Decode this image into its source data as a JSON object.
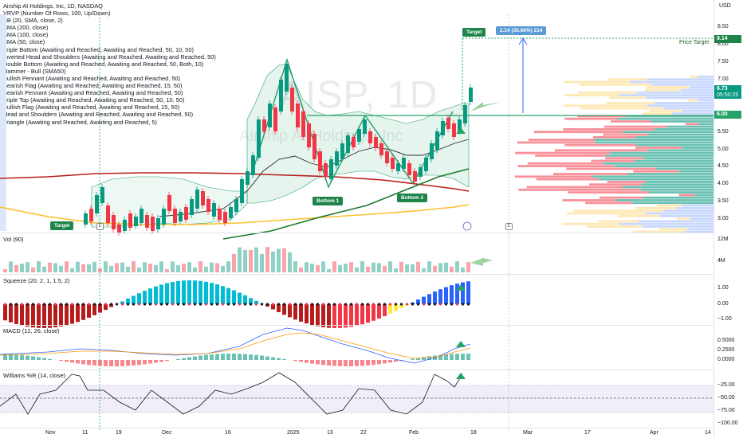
{
  "header": {
    "symbol_line": "Airship AI Holdings, Inc, 1D, NASDAQ",
    "indicators": [
      "VRVP (Number Of Rows, 100, Up/Down)",
      "BB (20, SMA, close, 2)",
      "SMA (200, close)",
      "SMA (100, close)",
      "SMA (50, close)",
      "Triple Bottom (Awaiting and Reached, Awaiting and Reached, 50, 10, 50)",
      "Inverted Head and Shoulders (Awaiting and Reached, Awaiting and Reached, 50)",
      "Double Bottom (Awaiting and Reached, Awaiting and Reached, 50, Both, 10)",
      "Hammer - Bull (SMA50)",
      "Bullish Pennant (Awaiting and Reached, Awaiting and Reached, 50)",
      "Bearish Flag (Awaiting and Reached, Awaiting and Reached, 15, 50)",
      "Bearish Pennant (Awaiting and Reached, Awaiting and Reached, 50)",
      "Triple Top (Awaiting and Reached, Awaiting and Reached, 50, 10, 50)",
      "Bullish Flag (Awaiting and Reached, Awaiting and Reached, 15, 50)",
      "Head and Shoulders (Awaiting and Reached, Awaiting and Reached, 50)",
      "Triangle (Awaiting and Reached, Awaiting and Reached, 5)"
    ]
  },
  "watermark": {
    "ticker": "AISP, 1D",
    "name": "Airship AI Holdings, Inc"
  },
  "price_axis": {
    "currency": "USD",
    "ticks": [
      "8.50",
      "8.00",
      "7.50",
      "7.00",
      "6.50",
      "5.50",
      "5.00",
      "4.50",
      "4.00",
      "3.50",
      "3.00"
    ],
    "target_tag": "8.14",
    "current_price": "6.73",
    "countdown": "05:50:25",
    "line_tag": "6.00"
  },
  "annotations": {
    "target_label": "Target",
    "target_left_label": "Target",
    "price_target_label": "Price Target",
    "measure_label": "2.14 (35.66%) 214",
    "bottom1": "Bottom 1",
    "bottom2": "Bottom 2",
    "earnings_marker": "E"
  },
  "volume": {
    "title": "Vol (90)",
    "ticks": [
      "12M",
      "4M"
    ]
  },
  "squeeze": {
    "title": "Squeeze (20, 2, 1, 1.5, 2)",
    "ticks": [
      "1.00",
      "0.00",
      "−1.00"
    ]
  },
  "macd": {
    "title": "MACD (12, 26, close)",
    "ticks": [
      "0.5000",
      "0.2500",
      "0.0000"
    ]
  },
  "williams": {
    "title": "Williams %R (14, close)",
    "ticks": [
      "−25.00",
      "−50.00",
      "−75.00",
      "−100.00"
    ]
  },
  "time_axis": [
    "Nov",
    "11",
    "19",
    "Dec",
    "16",
    "2025",
    "13",
    "22",
    "Feb",
    "18",
    "Mar",
    "17",
    "Apr",
    "14"
  ],
  "colors": {
    "up": "#089981",
    "down": "#f23645",
    "bb_fill": "#e3f2e8",
    "sma200": "#b71c1c",
    "sma100": "#fbc02d",
    "sma50": "#1b7a2e",
    "pattern": "#26a269",
    "target_box": "#1e8449",
    "measure_box": "#5b9bd5"
  }
}
